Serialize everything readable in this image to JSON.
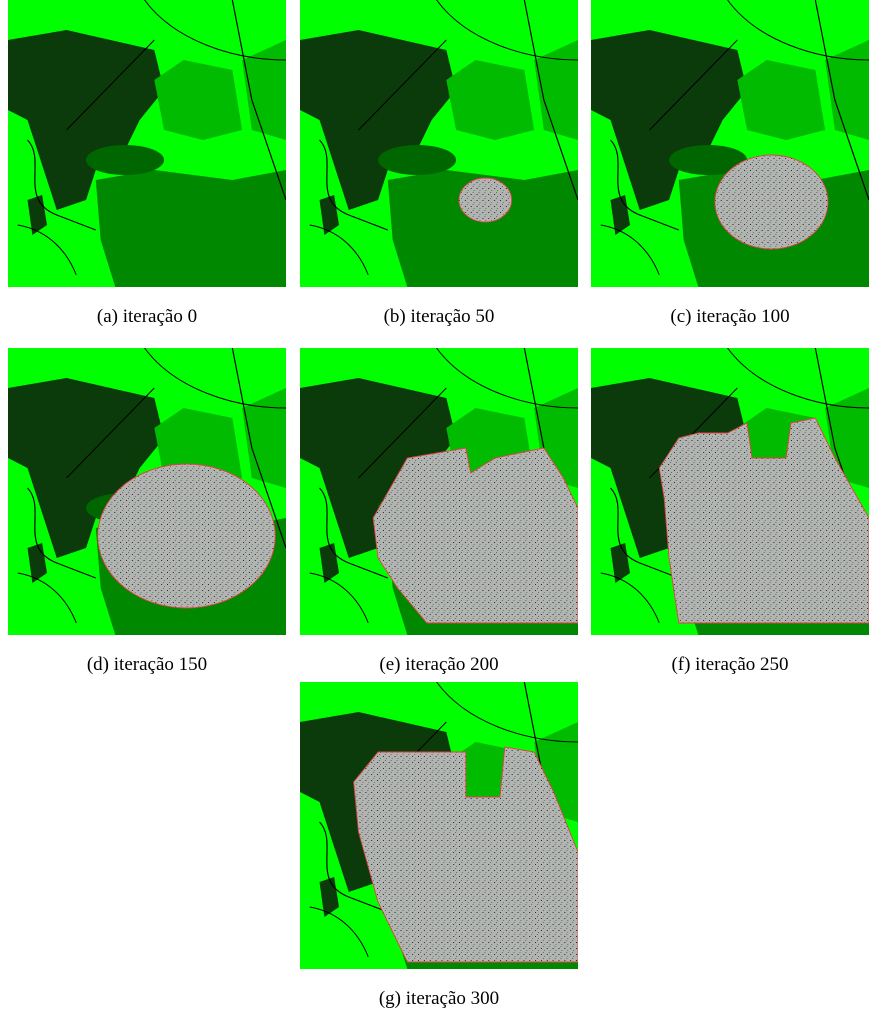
{
  "figure": {
    "panels": [
      {
        "caption": "(a) iteração 0"
      },
      {
        "caption": "(b) iteração 50"
      },
      {
        "caption": "(c) iteração 100"
      },
      {
        "caption": "(d) iteração 150"
      },
      {
        "caption": "(e) iteração 200"
      },
      {
        "caption": "(f) iteração 250"
      },
      {
        "caption": "(g) iteração 300"
      }
    ]
  }
}
